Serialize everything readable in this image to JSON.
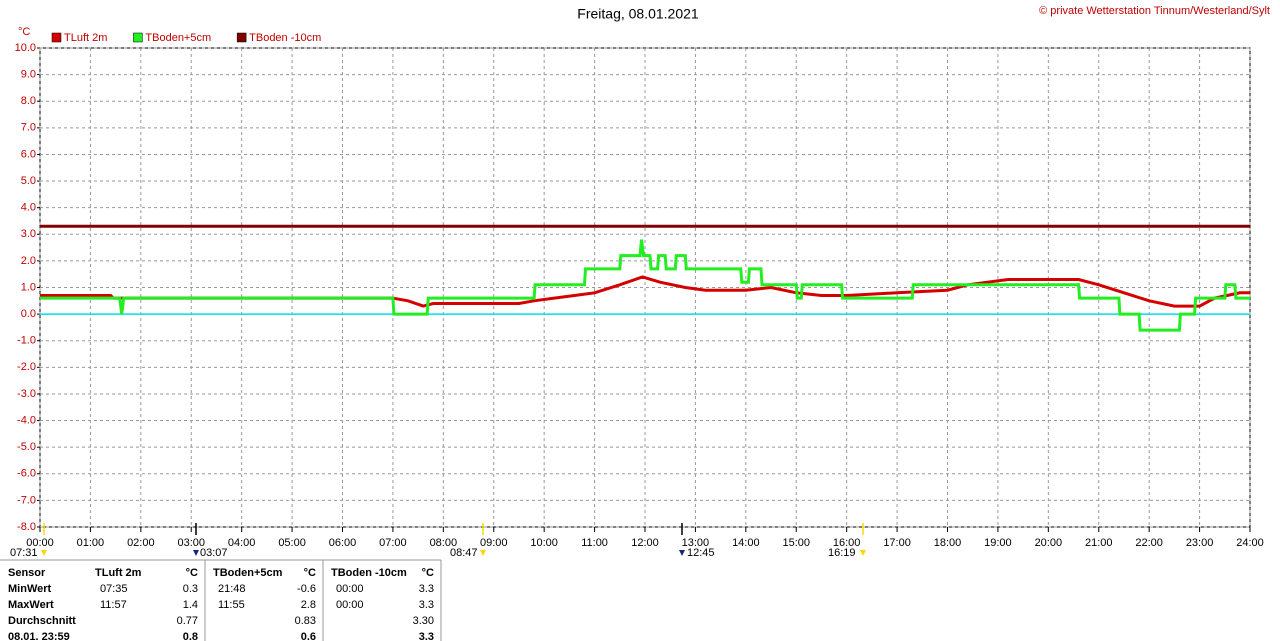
{
  "chart_data": {
    "type": "line",
    "title": "Freitag, 08.01.2021",
    "credit": "© private Wetterstation Tinnum/Westerland/Sylt",
    "y_unit": "°C",
    "grid": true,
    "zero_line_color": "#00e0e8",
    "xlim": [
      0,
      24
    ],
    "xticks": [
      {
        "value": 0,
        "label": "00:00"
      },
      {
        "value": 1,
        "label": "01:00"
      },
      {
        "value": 2,
        "label": "02:00"
      },
      {
        "value": 3,
        "label": "03:00"
      },
      {
        "value": 4,
        "label": "04:00"
      },
      {
        "value": 5,
        "label": "05:00"
      },
      {
        "value": 6,
        "label": "06:00"
      },
      {
        "value": 7,
        "label": "07:00"
      },
      {
        "value": 8,
        "label": "08:00"
      },
      {
        "value": 9,
        "label": "09:00"
      },
      {
        "value": 10,
        "label": "10:00"
      },
      {
        "value": 11,
        "label": "11:00"
      },
      {
        "value": 12,
        "label": "12:00"
      },
      {
        "value": 13,
        "label": "13:00"
      },
      {
        "value": 14,
        "label": "14:00"
      },
      {
        "value": 15,
        "label": "15:00"
      },
      {
        "value": 16,
        "label": "16:00"
      },
      {
        "value": 17,
        "label": "17:00"
      },
      {
        "value": 18,
        "label": "18:00"
      },
      {
        "value": 19,
        "label": "19:00"
      },
      {
        "value": 20,
        "label": "20:00"
      },
      {
        "value": 21,
        "label": "21:00"
      },
      {
        "value": 22,
        "label": "22:00"
      },
      {
        "value": 23,
        "label": "23:00"
      },
      {
        "value": 24,
        "label": "24:00"
      }
    ],
    "ylim": [
      -8,
      10
    ],
    "yticks": [
      {
        "value": 10,
        "label": "10.0"
      },
      {
        "value": 9,
        "label": "9.0"
      },
      {
        "value": 8,
        "label": "8.0"
      },
      {
        "value": 7,
        "label": "7.0"
      },
      {
        "value": 6,
        "label": "6.0"
      },
      {
        "value": 5,
        "label": "5.0"
      },
      {
        "value": 4,
        "label": "4.0"
      },
      {
        "value": 3,
        "label": "3.0"
      },
      {
        "value": 2,
        "label": "2.0"
      },
      {
        "value": 1,
        "label": "1.0"
      },
      {
        "value": 0,
        "label": "0.0"
      },
      {
        "value": -1,
        "label": "-1.0"
      },
      {
        "value": -2,
        "label": "-2.0"
      },
      {
        "value": -3,
        "label": "-3.0"
      },
      {
        "value": -4,
        "label": "-4.0"
      },
      {
        "value": -5,
        "label": "-5.0"
      },
      {
        "value": -6,
        "label": "-6.0"
      },
      {
        "value": -7,
        "label": "-7.0"
      },
      {
        "value": -8,
        "label": "-8.0"
      }
    ],
    "series": [
      {
        "name": "TLuft 2m",
        "color": "#d40000",
        "x": [
          0,
          1.4,
          1.45,
          3,
          3.05,
          7,
          7.3,
          7.6,
          7.8,
          8,
          9.5,
          9.8,
          10.2,
          10.6,
          11,
          11.5,
          11.95,
          12.3,
          12.8,
          13.2,
          14,
          14.5,
          15,
          15.5,
          16,
          17,
          18,
          18.4,
          19.2,
          20.6,
          21,
          21.5,
          22,
          22.5,
          23,
          23.3,
          23.8,
          24
        ],
        "values": [
          0.7,
          0.7,
          0.6,
          0.6,
          0.6,
          0.6,
          0.5,
          0.3,
          0.4,
          0.4,
          0.4,
          0.5,
          0.6,
          0.7,
          0.8,
          1.1,
          1.4,
          1.2,
          1.0,
          0.9,
          0.9,
          1.0,
          0.8,
          0.7,
          0.7,
          0.8,
          0.9,
          1.1,
          1.3,
          1.3,
          1.1,
          0.8,
          0.5,
          0.3,
          0.3,
          0.6,
          0.8,
          0.8
        ]
      },
      {
        "name": "TBoden+5cm",
        "color": "#22ee22",
        "x": [
          0,
          1.58,
          1.62,
          1.66,
          7.0,
          7.02,
          7.68,
          7.7,
          9.8,
          9.82,
          10.8,
          10.82,
          11.5,
          11.52,
          11.9,
          11.93,
          11.97,
          12.1,
          12.12,
          12.25,
          12.27,
          12.4,
          12.42,
          12.6,
          12.62,
          12.8,
          12.82,
          13.9,
          13.92,
          14.05,
          14.07,
          14.3,
          14.32,
          15.0,
          15.02,
          15.1,
          15.12,
          15.9,
          15.92,
          17.3,
          17.32,
          20.6,
          20.62,
          21.4,
          21.42,
          21.8,
          21.82,
          22.6,
          22.62,
          22.9,
          22.92,
          23.5,
          23.52,
          23.7,
          23.72,
          24
        ],
        "values": [
          0.6,
          0.6,
          0.0,
          0.6,
          0.6,
          0.0,
          0.0,
          0.6,
          0.6,
          1.1,
          1.1,
          1.7,
          1.7,
          2.2,
          2.2,
          2.8,
          2.2,
          2.2,
          1.7,
          1.7,
          2.2,
          2.2,
          1.7,
          1.7,
          2.2,
          2.2,
          1.7,
          1.7,
          1.2,
          1.2,
          1.7,
          1.7,
          1.1,
          1.1,
          0.6,
          0.6,
          1.1,
          1.1,
          0.6,
          0.6,
          1.1,
          1.1,
          0.6,
          0.6,
          0.0,
          0.0,
          -0.6,
          -0.6,
          0.0,
          0.0,
          0.6,
          0.6,
          1.1,
          1.1,
          0.6,
          0.6
        ]
      },
      {
        "name": "TBoden -10cm",
        "color": "#800000",
        "x": [
          0,
          24
        ],
        "values": [
          3.3,
          3.3
        ]
      }
    ],
    "annotations": [
      "07:31",
      "03:07",
      "08:47",
      "12:45",
      "16:19"
    ]
  },
  "table": {
    "header": [
      "Sensor",
      "TLuft 2m",
      "°C",
      "TBoden+5cm",
      "°C",
      "TBoden -10cm",
      "°C"
    ],
    "rows": [
      {
        "label": "MinWert",
        "cells": [
          {
            "time": "07:35",
            "value": "0.3"
          },
          {
            "time": "21:48",
            "value": "-0.6"
          },
          {
            "time": "00:00",
            "value": "3.3"
          }
        ]
      },
      {
        "label": "MaxWert",
        "cells": [
          {
            "time": "11:57",
            "value": "1.4"
          },
          {
            "time": "11:55",
            "value": "2.8"
          },
          {
            "time": "00:00",
            "value": "3.3"
          }
        ]
      },
      {
        "label": "Durchschnitt",
        "cells": [
          {
            "value": "0.77"
          },
          {
            "value": "0.83"
          },
          {
            "value": "3.30"
          }
        ]
      },
      {
        "label": "08.01. 23:59",
        "cells": [
          {
            "value": "0.8"
          },
          {
            "value": "0.6"
          },
          {
            "value": "3.3"
          }
        ]
      }
    ]
  }
}
